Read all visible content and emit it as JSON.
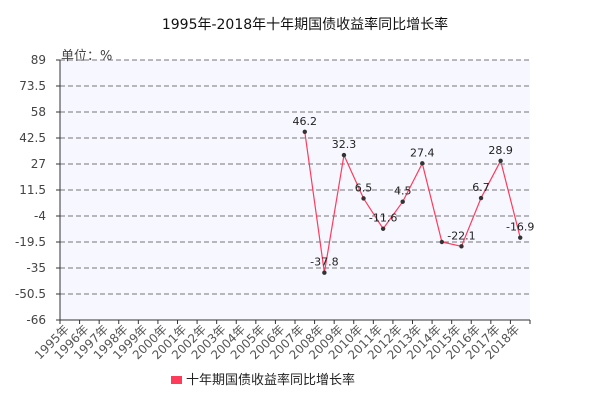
{
  "chart_data": {
    "type": "line",
    "title": "1995年-2018年十年期国债收益率同比增长率",
    "unit_label": "单位：%",
    "categories": [
      "1995年",
      "1996年",
      "1997年",
      "1998年",
      "1999年",
      "2000年",
      "2001年",
      "2002年",
      "2003年",
      "2004年",
      "2005年",
      "2006年",
      "2007年",
      "2008年",
      "2009年",
      "2010年",
      "2011年",
      "2012年",
      "2013年",
      "2014年",
      "2015年",
      "2016年",
      "2017年",
      "2018年"
    ],
    "series": [
      {
        "name": "十年期国债收益率同比增长率",
        "color": "#ff3b5c",
        "values": [
          null,
          null,
          null,
          null,
          null,
          null,
          null,
          null,
          null,
          null,
          null,
          null,
          46.2,
          -37.8,
          32.3,
          6.5,
          -11.6,
          4.5,
          27.4,
          -19.5,
          -22.1,
          6.7,
          28.9,
          -16.9
        ],
        "labels": [
          "",
          "",
          "",
          "",
          "",
          "",
          "",
          "",
          "",
          "",
          "",
          "",
          "46.2",
          "-37.8",
          "32.3",
          "6.5",
          "-11.6",
          "4.5",
          "27.4",
          "",
          "-22.1",
          "6.7",
          "28.9",
          "-16.9"
        ]
      }
    ],
    "yticks": [
      "89",
      "73.5",
      "58",
      "42.5",
      "27",
      "11.5",
      "-4",
      "-19.5",
      "-35",
      "-50.5",
      "-66"
    ],
    "ylim": [
      -66,
      89
    ],
    "grid": true,
    "legend_position": "bottom"
  }
}
